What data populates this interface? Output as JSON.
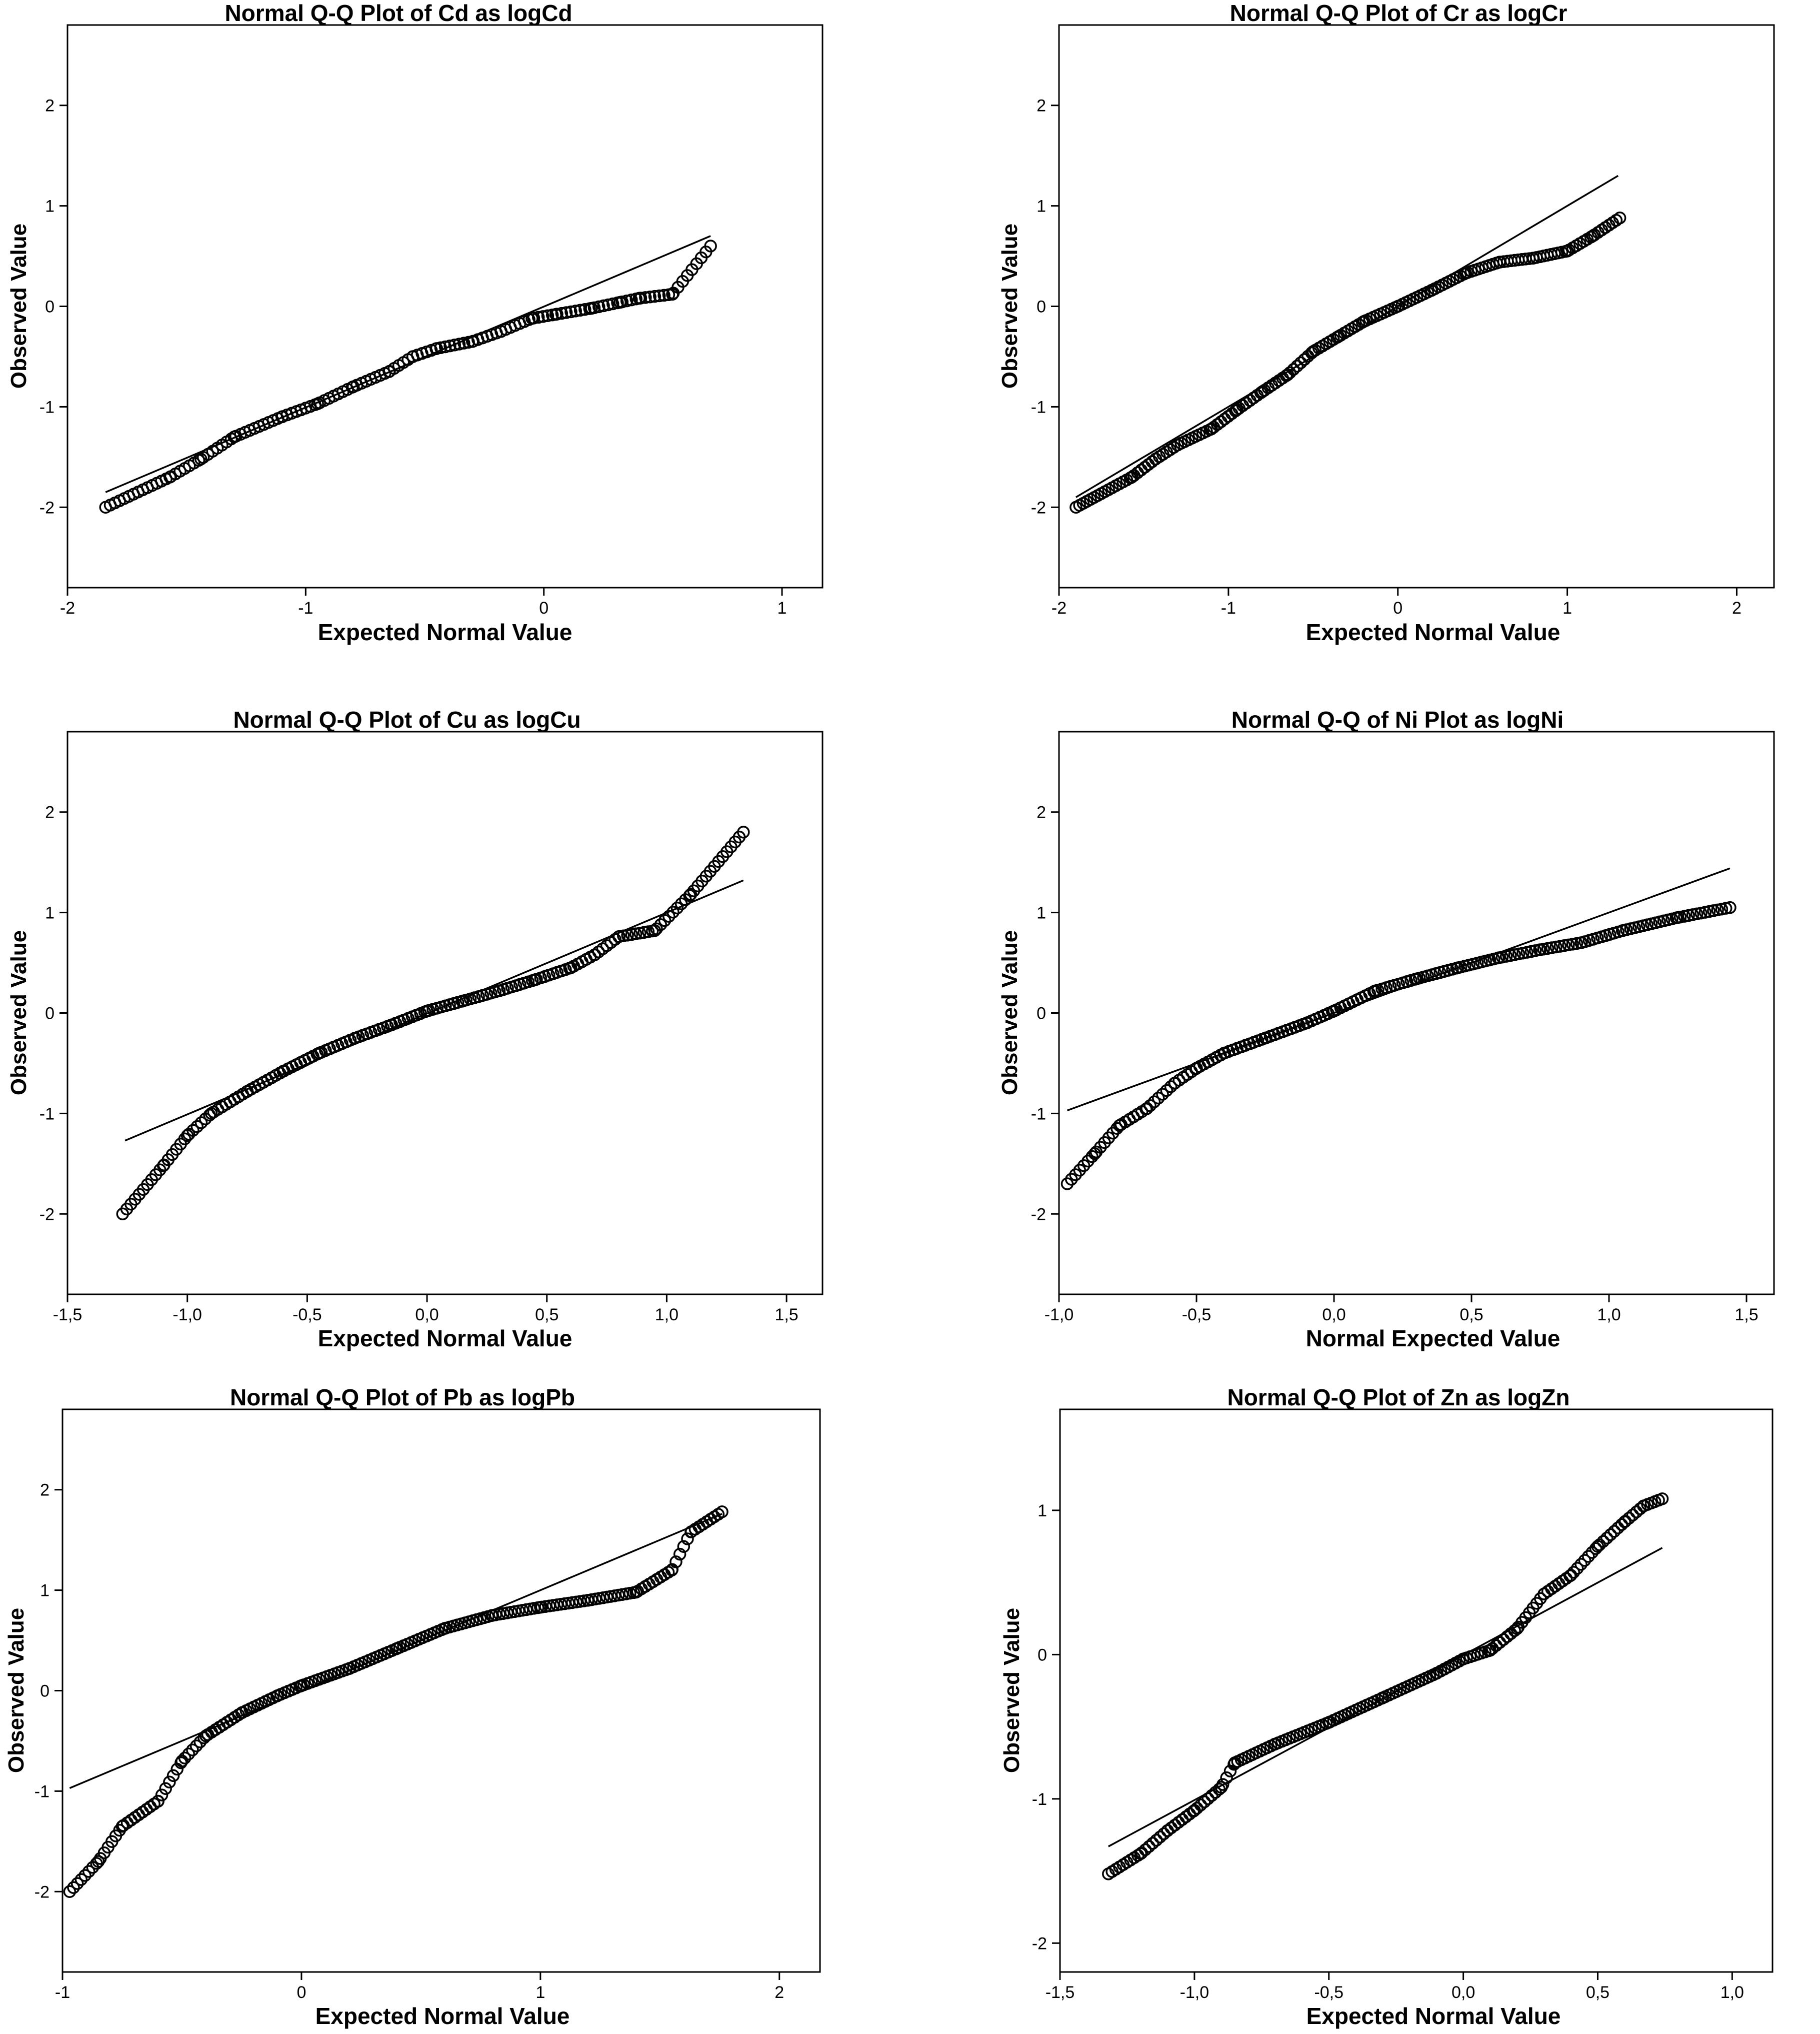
{
  "chart_data": [
    {
      "type": "scatter",
      "title": "Normal Q-Q Plot of Cd as logCd",
      "xlabel": "Expected Normal Value",
      "ylabel": "Observed Value",
      "xlim": [
        -2.0,
        1.17
      ],
      "ylim": [
        -2.8,
        2.8
      ],
      "xticks": [
        -2,
        -1,
        0,
        1
      ],
      "xtick_labels": [
        "-2",
        "-1",
        "0",
        "1"
      ],
      "yticks": [
        -2,
        -1,
        0,
        1,
        2
      ],
      "ytick_labels": [
        "-2",
        "-1",
        "0",
        "1",
        "2"
      ],
      "reference_line": [
        [
          -1.84,
          -1.85
        ],
        [
          0.7,
          0.7
        ]
      ],
      "anchors": [
        [
          -1.84,
          -2.0
        ],
        [
          -1.57,
          -1.7
        ],
        [
          -1.44,
          -1.52
        ],
        [
          -1.3,
          -1.3
        ],
        [
          -1.1,
          -1.1
        ],
        [
          -0.95,
          -0.97
        ],
        [
          -0.8,
          -0.8
        ],
        [
          -0.65,
          -0.65
        ],
        [
          -0.55,
          -0.5
        ],
        [
          -0.45,
          -0.42
        ],
        [
          -0.3,
          -0.35
        ],
        [
          -0.18,
          -0.25
        ],
        [
          -0.05,
          -0.12
        ],
        [
          0.05,
          -0.08
        ],
        [
          0.2,
          -0.02
        ],
        [
          0.32,
          0.04
        ],
        [
          0.4,
          0.08
        ],
        [
          0.54,
          0.12
        ],
        [
          0.7,
          0.6
        ]
      ],
      "point_count": 130
    },
    {
      "type": "scatter",
      "title": "Normal Q-Q Plot of Cr as logCr",
      "xlabel": "Expected Normal Value",
      "ylabel": "Observed Value",
      "xlim": [
        -2.0,
        2.22
      ],
      "ylim": [
        -2.8,
        2.8
      ],
      "xticks": [
        -2,
        -1,
        0,
        1,
        2
      ],
      "xtick_labels": [
        "-2",
        "-1",
        "0",
        "1",
        "2"
      ],
      "yticks": [
        -2,
        -1,
        0,
        1,
        2
      ],
      "ytick_labels": [
        "-2",
        "-1",
        "0",
        "1",
        "2"
      ],
      "reference_line": [
        [
          -1.9,
          -1.9
        ],
        [
          1.3,
          1.3
        ]
      ],
      "anchors": [
        [
          -1.9,
          -2.0
        ],
        [
          -1.57,
          -1.7
        ],
        [
          -1.43,
          -1.52
        ],
        [
          -1.3,
          -1.38
        ],
        [
          -1.1,
          -1.22
        ],
        [
          -0.95,
          -1.03
        ],
        [
          -0.8,
          -0.85
        ],
        [
          -0.65,
          -0.68
        ],
        [
          -0.5,
          -0.45
        ],
        [
          -0.35,
          -0.3
        ],
        [
          -0.2,
          -0.15
        ],
        [
          0.0,
          0.0
        ],
        [
          0.2,
          0.16
        ],
        [
          0.4,
          0.33
        ],
        [
          0.6,
          0.44
        ],
        [
          0.8,
          0.48
        ],
        [
          1.0,
          0.55
        ],
        [
          1.15,
          0.7
        ],
        [
          1.31,
          0.88
        ]
      ],
      "point_count": 150
    },
    {
      "type": "scatter",
      "title": "Normal Q-Q Plot of Cu as logCu",
      "xlabel": "Expected Normal Value",
      "ylabel": "Observed Value",
      "xlim": [
        -1.5,
        1.65
      ],
      "ylim": [
        -2.8,
        2.8
      ],
      "xticks": [
        -1.5,
        -1.0,
        -0.5,
        0.0,
        0.5,
        1.0,
        1.5
      ],
      "xtick_labels": [
        "-1,5",
        "-1,0",
        "-0,5",
        "0,0",
        "0,5",
        "1,0",
        "1,5"
      ],
      "yticks": [
        -2,
        -1,
        0,
        1,
        2
      ],
      "ytick_labels": [
        "-2",
        "-1",
        "0",
        "1",
        "2"
      ],
      "reference_line": [
        [
          -1.26,
          -1.27
        ],
        [
          1.32,
          1.32
        ]
      ],
      "anchors": [
        [
          -1.27,
          -2.0
        ],
        [
          -1.1,
          -1.52
        ],
        [
          -1.0,
          -1.22
        ],
        [
          -0.9,
          -1.0
        ],
        [
          -0.75,
          -0.78
        ],
        [
          -0.6,
          -0.58
        ],
        [
          -0.45,
          -0.4
        ],
        [
          -0.3,
          -0.25
        ],
        [
          -0.15,
          -0.12
        ],
        [
          0.0,
          0.02
        ],
        [
          0.15,
          0.12
        ],
        [
          0.3,
          0.22
        ],
        [
          0.45,
          0.33
        ],
        [
          0.6,
          0.45
        ],
        [
          0.7,
          0.58
        ],
        [
          0.8,
          0.76
        ],
        [
          0.95,
          0.82
        ],
        [
          1.1,
          1.18
        ],
        [
          1.32,
          1.8
        ]
      ],
      "point_count": 150
    },
    {
      "type": "scatter",
      "title": "Normal Q-Q of Ni Plot as logNi",
      "xlabel": "Normal Expected Value",
      "ylabel": "Observed Value",
      "xlim": [
        -1.0,
        1.6
      ],
      "ylim": [
        -2.8,
        2.8
      ],
      "xticks": [
        -1.0,
        -0.5,
        0.0,
        0.5,
        1.0,
        1.5
      ],
      "xtick_labels": [
        "-1,0",
        "-0,5",
        "0,0",
        "0,5",
        "1,0",
        "1,5"
      ],
      "yticks": [
        -2,
        -1,
        0,
        1,
        2
      ],
      "ytick_labels": [
        "-2",
        "-1",
        "0",
        "1",
        "2"
      ],
      "reference_line": [
        [
          -0.97,
          -0.97
        ],
        [
          1.44,
          1.44
        ]
      ],
      "anchors": [
        [
          -0.97,
          -1.7
        ],
        [
          -0.87,
          -1.4
        ],
        [
          -0.78,
          -1.12
        ],
        [
          -0.68,
          -0.95
        ],
        [
          -0.58,
          -0.7
        ],
        [
          -0.5,
          -0.55
        ],
        [
          -0.4,
          -0.4
        ],
        [
          -0.25,
          -0.25
        ],
        [
          -0.1,
          -0.1
        ],
        [
          0.0,
          0.02
        ],
        [
          0.15,
          0.22
        ],
        [
          0.3,
          0.34
        ],
        [
          0.45,
          0.45
        ],
        [
          0.6,
          0.55
        ],
        [
          0.75,
          0.63
        ],
        [
          0.9,
          0.7
        ],
        [
          1.05,
          0.82
        ],
        [
          1.25,
          0.95
        ],
        [
          1.44,
          1.05
        ]
      ],
      "point_count": 160
    },
    {
      "type": "scatter",
      "title": "Normal Q-Q Plot of Pb as logPb",
      "xlabel": "Expected Normal Value",
      "ylabel": "Observed Value",
      "xlim": [
        -1.0,
        2.17
      ],
      "ylim": [
        -2.8,
        2.8
      ],
      "xticks": [
        -1,
        0,
        1,
        2
      ],
      "xtick_labels": [
        "-1",
        "0",
        "1",
        "2"
      ],
      "yticks": [
        -2,
        -1,
        0,
        1,
        2
      ],
      "ytick_labels": [
        "-2",
        "-1",
        "0",
        "1",
        "2"
      ],
      "reference_line": [
        [
          -0.97,
          -0.97
        ],
        [
          1.76,
          1.76
        ]
      ],
      "anchors": [
        [
          -0.97,
          -2.0
        ],
        [
          -0.85,
          -1.7
        ],
        [
          -0.75,
          -1.35
        ],
        [
          -0.6,
          -1.1
        ],
        [
          -0.5,
          -0.7
        ],
        [
          -0.4,
          -0.45
        ],
        [
          -0.25,
          -0.22
        ],
        [
          -0.1,
          -0.05
        ],
        [
          0.0,
          0.05
        ],
        [
          0.2,
          0.22
        ],
        [
          0.4,
          0.42
        ],
        [
          0.6,
          0.62
        ],
        [
          0.8,
          0.75
        ],
        [
          1.0,
          0.83
        ],
        [
          1.2,
          0.9
        ],
        [
          1.4,
          0.98
        ],
        [
          1.55,
          1.2
        ],
        [
          1.63,
          1.58
        ],
        [
          1.76,
          1.78
        ]
      ],
      "point_count": 170
    },
    {
      "type": "scatter",
      "title": "Normal Q-Q Plot of Zn as logZn",
      "xlabel": "Expected Normal Value",
      "ylabel": "Observed Value",
      "xlim": [
        -1.5,
        1.15
      ],
      "ylim": [
        -2.2,
        1.7
      ],
      "xticks": [
        -1.5,
        -1.0,
        -0.5,
        0.0,
        0.5,
        1.0
      ],
      "xtick_labels": [
        "-1,5",
        "-1,0",
        "-0,5",
        "0,0",
        "0,5",
        "1,0"
      ],
      "yticks": [
        -2,
        -1,
        0,
        1
      ],
      "ytick_labels": [
        "-2",
        "-1",
        "0",
        "1"
      ],
      "reference_line": [
        [
          -1.32,
          -1.33
        ],
        [
          0.74,
          0.74
        ]
      ],
      "anchors": [
        [
          -1.32,
          -1.52
        ],
        [
          -1.2,
          -1.38
        ],
        [
          -1.1,
          -1.22
        ],
        [
          -1.0,
          -1.08
        ],
        [
          -0.9,
          -0.92
        ],
        [
          -0.85,
          -0.75
        ],
        [
          -0.7,
          -0.62
        ],
        [
          -0.5,
          -0.47
        ],
        [
          -0.3,
          -0.3
        ],
        [
          -0.1,
          -0.13
        ],
        [
          0.0,
          -0.03
        ],
        [
          0.1,
          0.03
        ],
        [
          0.2,
          0.18
        ],
        [
          0.3,
          0.42
        ],
        [
          0.4,
          0.55
        ],
        [
          0.5,
          0.75
        ],
        [
          0.6,
          0.92
        ],
        [
          0.67,
          1.03
        ],
        [
          0.74,
          1.08
        ]
      ],
      "point_count": 150
    }
  ]
}
